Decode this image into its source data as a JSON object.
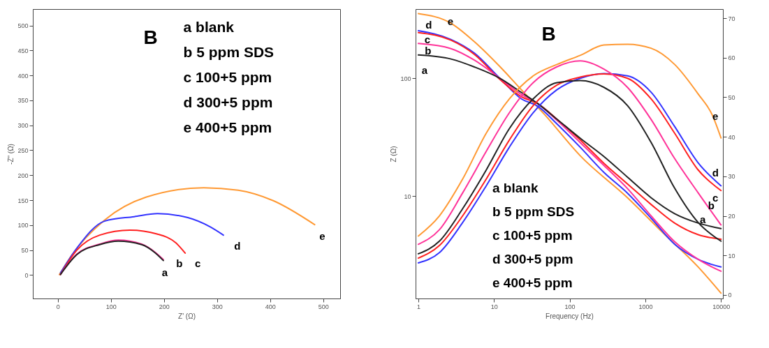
{
  "chart_data": [
    {
      "type": "line",
      "xlabel": "Z' (Ω)",
      "ylabel": "-Z\" (Ω)",
      "xlim": [
        -47,
        532
      ],
      "ylim": [
        -47,
        533
      ],
      "xticks": [
        0,
        100,
        200,
        300,
        400,
        500
      ],
      "yticks": [
        0,
        50,
        100,
        150,
        200,
        250,
        300,
        350,
        400,
        450,
        500
      ],
      "annotations": [
        "B",
        "a  blank",
        "b  5 ppm  SDS",
        "c  100+5 ppm",
        "d  300+5 ppm",
        "e  400+5 ppm"
      ],
      "series": [
        {
          "name": "e",
          "color": "#ff9933",
          "x": [
            3,
            27,
            88,
            166,
            275,
            340,
            406,
            484
          ],
          "values": [
            1,
            41,
            110,
            156,
            175,
            170,
            149,
            101
          ]
        },
        {
          "name": "d",
          "color": "#3333ff",
          "x": [
            5,
            36,
            88,
            144,
            188,
            245,
            288,
            312
          ],
          "values": [
            4,
            54,
            108,
            117,
            123,
            115,
            96,
            80
          ]
        },
        {
          "name": "c",
          "color": "#ff2020",
          "x": [
            5,
            36,
            79,
            136,
            188,
            223,
            240
          ],
          "values": [
            1,
            50,
            80,
            90,
            82,
            64,
            44
          ]
        },
        {
          "name": "b",
          "color": "#ff3399",
          "x": [
            5,
            36,
            79,
            114,
            158,
            183,
            199
          ],
          "values": [
            1,
            42,
            62,
            70,
            62,
            46,
            31
          ]
        },
        {
          "name": "a",
          "color": "#222222",
          "x": [
            5,
            36,
            79,
            114,
            158,
            183,
            199
          ],
          "values": [
            1,
            41,
            61,
            68,
            61,
            45,
            29
          ]
        }
      ]
    },
    {
      "type": "line",
      "xlabel": "Frequency (Hz)",
      "ylabel": "Z (Ω)",
      "log": "xy",
      "xlim": [
        0.92,
        10600
      ],
      "ylim": [
        1.35,
        388
      ],
      "y2lim": [
        -0.9,
        72.3
      ],
      "xticks": [
        1,
        10,
        100,
        1000,
        10000
      ],
      "yticks": [
        10,
        100
      ],
      "y2ticks": [
        0,
        10,
        20,
        30,
        40,
        50,
        60,
        70
      ],
      "annotations": [
        "B",
        "a  blank",
        "b  5 ppm SDS",
        "c  100+5 ppm",
        "d  300+5 ppm",
        "e  400+5 ppm"
      ],
      "series": [
        {
          "name": "e",
          "color": "#ff9933",
          "x": [
            1,
            2.7,
            5.5,
            12.1,
            23,
            47,
            138,
            581,
            1700,
            5000,
            10000
          ],
          "values": [
            355,
            294,
            205,
            125,
            80,
            49,
            22,
            9.7,
            4.9,
            2.5,
            1.5
          ]
        },
        {
          "name": "d",
          "color": "#3333ff",
          "x": [
            1,
            2.7,
            5.5,
            12,
            23,
            38,
            68,
            138,
            284,
            581,
            1190,
            2440,
            5000,
            10000
          ],
          "values": [
            254,
            214,
            164,
            100,
            67,
            58,
            41,
            26,
            15.9,
            10.6,
            6.5,
            3.9,
            2.9,
            2.5
          ]
        },
        {
          "name": "c",
          "color": "#ff2020",
          "x": [
            1,
            2.7,
            5.5,
            12,
            23,
            38,
            68,
            138,
            284,
            581,
            1190,
            2440,
            5000,
            10000
          ],
          "values": [
            245,
            211,
            160,
            98,
            70,
            61,
            45,
            30,
            19,
            12.7,
            8.5,
            5.9,
            4.7,
            4.3
          ]
        },
        {
          "name": "b",
          "color": "#ff3399",
          "x": [
            1,
            2.7,
            5.5,
            12,
            23,
            38,
            68,
            138,
            284,
            581,
            1190,
            2440,
            5000,
            10000
          ],
          "values": [
            198,
            179,
            143,
            100,
            73,
            61,
            44,
            28.5,
            18.2,
            11.6,
            6.8,
            4.1,
            2.9,
            2.3
          ]
        },
        {
          "name": "a",
          "color": "#222222",
          "x": [
            1,
            2.7,
            5.5,
            12,
            23,
            38,
            68,
            138,
            284,
            581,
            1190,
            2440,
            5000,
            10000
          ],
          "values": [
            158,
            146,
            125,
            100,
            76,
            61,
            45,
            31,
            21.7,
            14.5,
            9.7,
            7.1,
            5.9,
            5.3
          ]
        },
        {
          "name": "e",
          "color": "#ff9933",
          "axis": "y2",
          "x": [
            1,
            1.9,
            3.85,
            7.9,
            16,
            33,
            68,
            138,
            284,
            581,
            1190,
            2440,
            5000,
            7670,
            10000
          ],
          "values": [
            14.9,
            20,
            29.3,
            40.9,
            49.6,
            55.4,
            58.3,
            60.6,
            63.2,
            63.4,
            62.4,
            58.3,
            50.8,
            45.5,
            39.7
          ]
        },
        {
          "name": "d",
          "color": "#3333ff",
          "axis": "y2",
          "x": [
            1,
            1.9,
            3.85,
            7.9,
            16,
            33,
            68,
            138,
            284,
            581,
            1190,
            2440,
            5000,
            10000
          ],
          "values": [
            8.1,
            10.7,
            18.3,
            27.6,
            37.4,
            46.1,
            51.9,
            54.8,
            56,
            55.4,
            51.3,
            42.6,
            33.4,
            27.6
          ]
        },
        {
          "name": "c",
          "color": "#ff2020",
          "axis": "y2",
          "x": [
            1,
            1.9,
            3.85,
            7.9,
            16,
            33,
            68,
            138,
            284,
            581,
            1190,
            2440,
            5000,
            10000
          ],
          "values": [
            9.3,
            12.5,
            20,
            29.3,
            39.2,
            47.9,
            53.1,
            55.1,
            55.9,
            54.8,
            49.6,
            40.9,
            31.6,
            26.4
          ]
        },
        {
          "name": "b",
          "color": "#ff3399",
          "axis": "y2",
          "x": [
            1,
            1.9,
            3.85,
            7.9,
            16,
            33,
            68,
            138,
            284,
            581,
            1190,
            2440,
            5000,
            10000
          ],
          "values": [
            12.8,
            16.5,
            25.8,
            36.3,
            46.1,
            53.7,
            57.7,
            59.2,
            57.1,
            52.5,
            44.4,
            34.5,
            25.8,
            17.7
          ]
        },
        {
          "name": "a",
          "color": "#222222",
          "axis": "y2",
          "x": [
            1,
            1.9,
            3.85,
            7.9,
            16,
            33,
            68,
            138,
            284,
            581,
            1190,
            2440,
            5000,
            10000
          ],
          "values": [
            10.4,
            13.6,
            21.8,
            31.6,
            42.1,
            49.6,
            53.7,
            54.2,
            52.5,
            47.9,
            38.6,
            27,
            18.3,
            13.6
          ]
        }
      ]
    }
  ]
}
